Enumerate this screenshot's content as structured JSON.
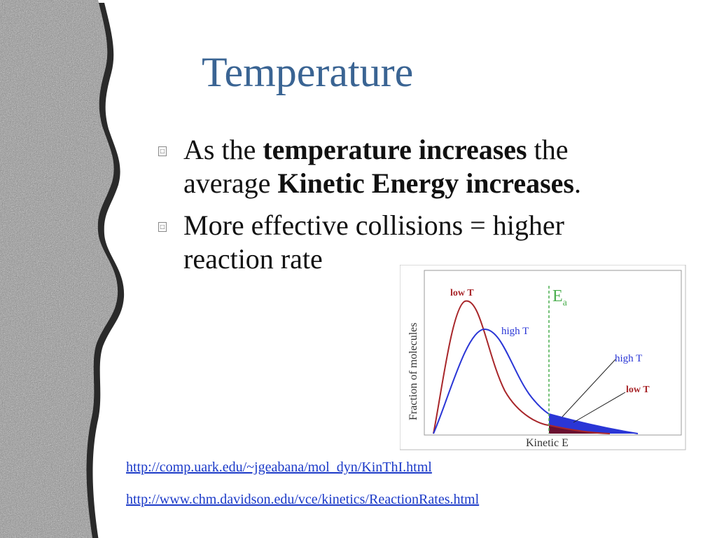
{
  "slide": {
    "title": "Temperature",
    "bullet1": {
      "pre": "As the ",
      "bold1": "temperature increases",
      "mid": " the average ",
      "bold2": "Kinetic Energy increases",
      "post": "."
    },
    "bullet2": "More effective collisions = higher reaction rate",
    "bullet_glyph": "□",
    "links": [
      "http://comp.uark.edu/~jgeabana/mol_dyn/KinThI.html",
      "http://www.chm.davidson.edu/vce/kinetics/ReactionRates.html"
    ]
  },
  "diagram": {
    "ylabel": "Fraction of molecules",
    "xlabel": "Kinetic E",
    "ea_label": "E",
    "ea_sub": "a",
    "low_t_curve_label": "low T",
    "high_t_curve_label": "high T",
    "high_t_tail_label": "high T",
    "low_t_tail_label": "low T",
    "colors": {
      "low_t": "#a8262a",
      "high_t": "#2a36d6",
      "ea_line": "#4caf50",
      "low_tail_fill": "#6a1030"
    }
  }
}
